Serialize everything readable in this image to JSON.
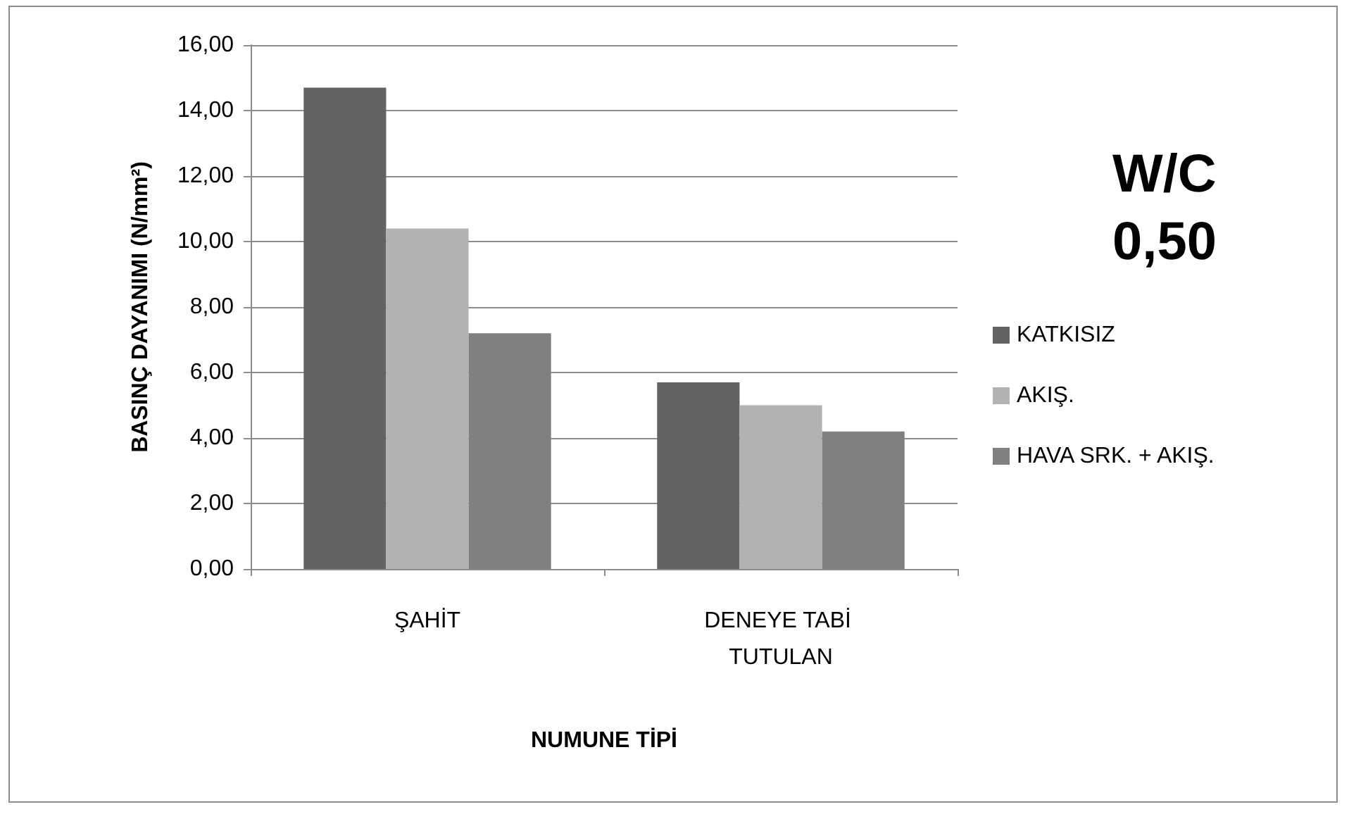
{
  "chart_data": {
    "type": "bar",
    "xlabel": "NUMUNE TİPİ",
    "ylabel": "BASINÇ DAYANIMI (N/mm²)",
    "annotations": [
      "W/C",
      "0,50"
    ],
    "categories": [
      "ŞAHİT",
      "DENEYE TABİ TUTULAN"
    ],
    "series": [
      {
        "name": "KATKISIZ",
        "color": "#636363",
        "values": [
          14.7,
          5.7
        ]
      },
      {
        "name": "AKIŞ.",
        "color": "#b2b2b2",
        "values": [
          10.4,
          5.0
        ]
      },
      {
        "name": "HAVA SRK. + AKIŞ.",
        "color": "#808080",
        "values": [
          7.2,
          4.2
        ]
      }
    ],
    "ylim": [
      0,
      16
    ],
    "yticks": [
      {
        "value": 0,
        "label": "0,00"
      },
      {
        "value": 2,
        "label": "2,00"
      },
      {
        "value": 4,
        "label": "4,00"
      },
      {
        "value": 6,
        "label": "6,00"
      },
      {
        "value": 8,
        "label": "8,00"
      },
      {
        "value": 10,
        "label": "10,00"
      },
      {
        "value": 12,
        "label": "12,00"
      },
      {
        "value": 14,
        "label": "14,00"
      },
      {
        "value": 16,
        "label": "16,00"
      }
    ],
    "grid": "y",
    "legend": "right"
  }
}
